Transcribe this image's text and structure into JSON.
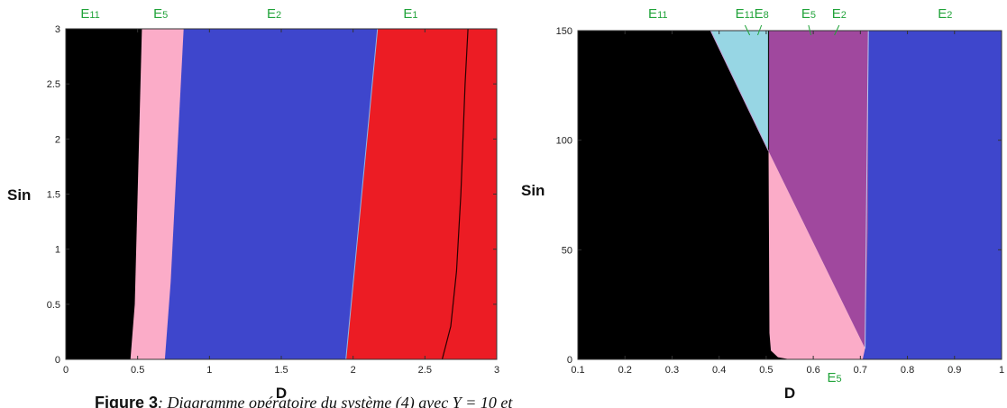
{
  "colors": {
    "black": "#000000",
    "pink": "#fbacc8",
    "blue": "#3e46cc",
    "red": "#ec1c24",
    "cyan": "#97d6e4",
    "purple": "#a0489e",
    "label_green": "#21a33a"
  },
  "caption": {
    "bold": "Figure 3",
    "rest": ": Diagramme opératoire du système (4) avec Y = 10 et"
  },
  "chart_data": [
    {
      "type": "heatmap",
      "title": "",
      "xlabel": "D",
      "ylabel": "Sin",
      "xlim": [
        0,
        3
      ],
      "ylim": [
        0,
        3
      ],
      "xticks": [
        "0",
        "0.5",
        "1",
        "1.5",
        "2",
        "2.5",
        "3"
      ],
      "yticks": [
        "0",
        "0.5",
        "1",
        "1.5",
        "2",
        "2.5",
        "3"
      ],
      "regions": [
        {
          "label": "E11",
          "color": "black",
          "boundary_right": [
            [
              0.45,
              0
            ],
            [
              0.53,
              3
            ]
          ]
        },
        {
          "label": "E5",
          "color": "pink",
          "boundary_right": [
            [
              0.69,
              0
            ],
            [
              0.82,
              3
            ]
          ]
        },
        {
          "label": "E2",
          "color": "blue",
          "boundary_right": [
            [
              1.95,
              0
            ],
            [
              2.17,
              3
            ]
          ]
        },
        {
          "label": "E1",
          "color": "red",
          "boundary_right": [
            [
              3,
              0
            ],
            [
              3,
              3
            ]
          ]
        }
      ],
      "curves": [
        {
          "name": "",
          "points": [
            [
              2.62,
              0
            ],
            [
              2.68,
              0.3
            ],
            [
              2.72,
              0.8
            ],
            [
              2.75,
              1.5
            ],
            [
              2.78,
              2.5
            ],
            [
              2.8,
              3
            ]
          ]
        }
      ],
      "top_labels": [
        {
          "main": "E",
          "sub": "11",
          "x": 0.17
        },
        {
          "main": "E",
          "sub": "5",
          "x": 0.66
        },
        {
          "main": "E",
          "sub": "2",
          "x": 1.45
        },
        {
          "main": "E",
          "sub": "1",
          "x": 2.4
        }
      ]
    },
    {
      "type": "heatmap",
      "title": "",
      "xlabel": "D",
      "ylabel": "Sin",
      "xlim": [
        0.1,
        1
      ],
      "ylim": [
        0,
        150
      ],
      "xticks": [
        "0.1",
        "0.2",
        "0.3",
        "0.4",
        "0.5",
        "0.6",
        "0.7",
        "0.8",
        "0.9",
        "1"
      ],
      "yticks": [
        "0",
        "50",
        "100",
        "150"
      ],
      "regions": [
        {
          "label": "E11",
          "color": "black"
        },
        {
          "label": "E11 E8",
          "color": "cyan"
        },
        {
          "label": "E5 E2",
          "color": "purple"
        },
        {
          "label": "E5",
          "color": "pink"
        },
        {
          "label": "E2",
          "color": "blue"
        }
      ],
      "top_labels": [
        {
          "main": "E",
          "sub": "11",
          "x": 0.27
        },
        {
          "main": "E",
          "sub": "11",
          "x": 0.455
        },
        {
          "main": "E",
          "sub": "8",
          "x": 0.49
        },
        {
          "main": "E",
          "sub": "5",
          "x": 0.59
        },
        {
          "main": "E",
          "sub": "2",
          "x": 0.655
        },
        {
          "main": "E",
          "sub": "2",
          "x": 0.88
        }
      ],
      "bottom_label": {
        "main": "E",
        "sub": "5",
        "x": 0.645
      }
    }
  ]
}
